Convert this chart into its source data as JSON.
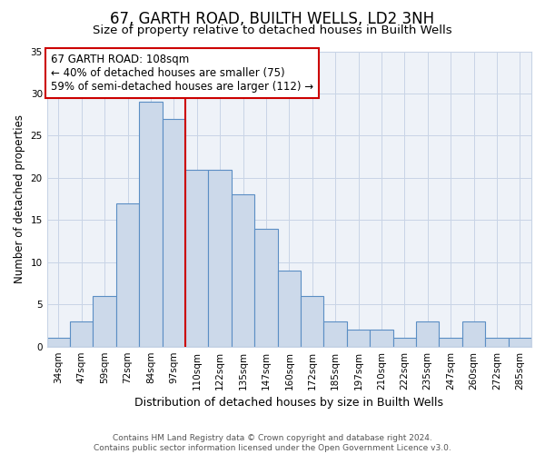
{
  "title": "67, GARTH ROAD, BUILTH WELLS, LD2 3NH",
  "subtitle": "Size of property relative to detached houses in Builth Wells",
  "xlabel": "Distribution of detached houses by size in Builth Wells",
  "ylabel": "Number of detached properties",
  "bar_heights": [
    1,
    3,
    6,
    17,
    29,
    27,
    21,
    21,
    18,
    14,
    9,
    6,
    3,
    2,
    2,
    1,
    3,
    1,
    3,
    1,
    1
  ],
  "bin_labels": [
    "34sqm",
    "47sqm",
    "59sqm",
    "72sqm",
    "84sqm",
    "97sqm",
    "110sqm",
    "122sqm",
    "135sqm",
    "147sqm",
    "160sqm",
    "172sqm",
    "185sqm",
    "197sqm",
    "210sqm",
    "222sqm",
    "235sqm",
    "247sqm",
    "260sqm",
    "272sqm",
    "285sqm"
  ],
  "bar_color": "#ccd9ea",
  "bar_edge_color": "#5b8ec4",
  "vline_x": 6,
  "vline_color": "#cc0000",
  "annotation_text": "67 GARTH ROAD: 108sqm\n← 40% of detached houses are smaller (75)\n59% of semi-detached houses are larger (112) →",
  "annotation_box_color": "#ffffff",
  "annotation_box_edge_color": "#cc0000",
  "ylim": [
    0,
    35
  ],
  "yticks": [
    0,
    5,
    10,
    15,
    20,
    25,
    30,
    35
  ],
  "footer_text": "Contains HM Land Registry data © Crown copyright and database right 2024.\nContains public sector information licensed under the Open Government Licence v3.0.",
  "bg_color": "#ffffff",
  "plot_bg_color": "#eef2f8",
  "grid_color": "#c8d4e6",
  "title_fontsize": 12,
  "subtitle_fontsize": 9.5,
  "xlabel_fontsize": 9,
  "ylabel_fontsize": 8.5,
  "tick_fontsize": 7.5,
  "annotation_fontsize": 8.5,
  "footer_fontsize": 6.5
}
